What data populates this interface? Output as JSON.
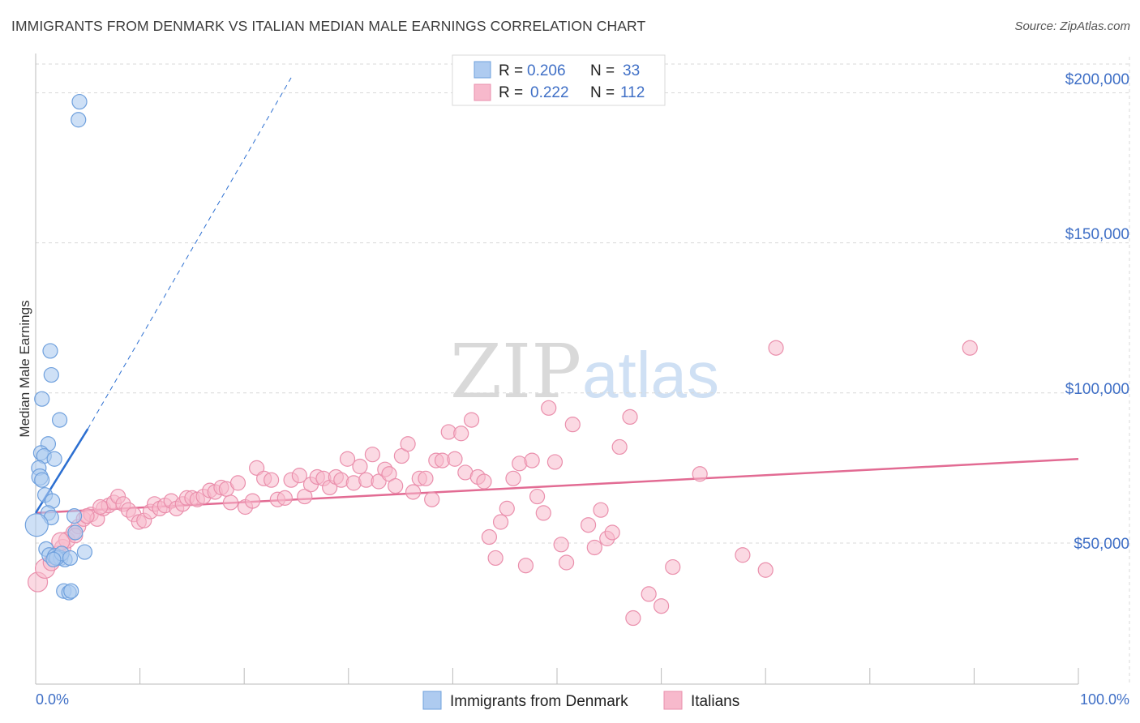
{
  "header": {
    "title": "IMMIGRANTS FROM DENMARK VS ITALIAN MEDIAN MALE EARNINGS CORRELATION CHART",
    "source": "Source: ZipAtlas.com"
  },
  "watermark": {
    "zip": "ZIP",
    "atlas": "atlas"
  },
  "colors": {
    "denmark_fill": "#aecbf0",
    "denmark_stroke": "#6fa0dd",
    "denmark_line": "#2c6fd1",
    "italians_fill": "#f7b9cc",
    "italians_stroke": "#ea8fac",
    "italians_line": "#e26b93",
    "grid": "#d8d8d8",
    "axis_text": "#3f6fc6"
  },
  "legend": {
    "rows": [
      {
        "r_label": "R = ",
        "r_value": "0.206",
        "n_label": "N = ",
        "n_value": "33"
      },
      {
        "r_label": "R = ",
        "r_value": "0.222",
        "n_label": "N = ",
        "n_value": "112"
      }
    ]
  },
  "chart_data": {
    "type": "scatter",
    "title": "IMMIGRANTS FROM DENMARK VS ITALIAN MEDIAN MALE EARNINGS CORRELATION CHART",
    "xlabel": "",
    "ylabel": "Median Male Earnings",
    "xlim": [
      0,
      100
    ],
    "ylim": [
      3000,
      212000
    ],
    "x_tick_labels": [
      "0.0%",
      "100.0%"
    ],
    "y_ticks": [
      {
        "value": 50000,
        "label": "$50,000"
      },
      {
        "value": 100000,
        "label": "$100,000"
      },
      {
        "value": 150000,
        "label": "$150,000"
      },
      {
        "value": 200000,
        "label": "$200,000"
      }
    ],
    "grid": true,
    "legend_position": "top-center",
    "series": [
      {
        "name": "Immigrants from Denmark",
        "r": 0.206,
        "n": 33,
        "trend": {
          "x0": 0.0,
          "y0": 60000,
          "x1": 5.0,
          "y1": 88000,
          "dash_to_x": 24.5,
          "dash_to_y": 205000
        },
        "points": [
          {
            "x": 4.2,
            "y": 197000,
            "r": 9
          },
          {
            "x": 4.1,
            "y": 191000,
            "r": 9
          },
          {
            "x": 1.4,
            "y": 114000,
            "r": 9
          },
          {
            "x": 1.5,
            "y": 106000,
            "r": 9
          },
          {
            "x": 0.6,
            "y": 98000,
            "r": 9
          },
          {
            "x": 2.3,
            "y": 91000,
            "r": 9
          },
          {
            "x": 1.2,
            "y": 83000,
            "r": 9
          },
          {
            "x": 0.5,
            "y": 80000,
            "r": 9
          },
          {
            "x": 0.8,
            "y": 79000,
            "r": 9
          },
          {
            "x": 1.8,
            "y": 78000,
            "r": 9
          },
          {
            "x": 0.3,
            "y": 75000,
            "r": 9
          },
          {
            "x": 0.4,
            "y": 72000,
            "r": 10
          },
          {
            "x": 0.6,
            "y": 71000,
            "r": 9
          },
          {
            "x": 0.9,
            "y": 66000,
            "r": 9
          },
          {
            "x": 1.6,
            "y": 64000,
            "r": 9
          },
          {
            "x": 1.2,
            "y": 60000,
            "r": 9
          },
          {
            "x": 3.7,
            "y": 59000,
            "r": 9
          },
          {
            "x": 1.5,
            "y": 58500,
            "r": 9
          },
          {
            "x": 0.1,
            "y": 56000,
            "r": 14
          },
          {
            "x": 3.8,
            "y": 53500,
            "r": 9
          },
          {
            "x": 1.0,
            "y": 48000,
            "r": 9
          },
          {
            "x": 4.7,
            "y": 47000,
            "r": 9
          },
          {
            "x": 1.3,
            "y": 46000,
            "r": 9
          },
          {
            "x": 1.9,
            "y": 45500,
            "r": 10
          },
          {
            "x": 2.4,
            "y": 45000,
            "r": 9
          },
          {
            "x": 2.8,
            "y": 44500,
            "r": 9
          },
          {
            "x": 2.0,
            "y": 45000,
            "r": 9
          },
          {
            "x": 2.5,
            "y": 46500,
            "r": 9
          },
          {
            "x": 1.7,
            "y": 44500,
            "r": 9
          },
          {
            "x": 3.3,
            "y": 45000,
            "r": 9
          },
          {
            "x": 2.7,
            "y": 34000,
            "r": 9
          },
          {
            "x": 3.2,
            "y": 33500,
            "r": 9
          },
          {
            "x": 3.4,
            "y": 34000,
            "r": 9
          }
        ]
      },
      {
        "name": "Italians",
        "r": 0.222,
        "n": 112,
        "trend": {
          "x0": 0.0,
          "y0": 60000,
          "x1": 100.0,
          "y1": 78000
        },
        "points": [
          {
            "x": 0.2,
            "y": 37000,
            "r": 12
          },
          {
            "x": 0.9,
            "y": 41500,
            "r": 12
          },
          {
            "x": 1.5,
            "y": 43500,
            "r": 10
          },
          {
            "x": 2.1,
            "y": 46000,
            "r": 11
          },
          {
            "x": 2.6,
            "y": 48500,
            "r": 10
          },
          {
            "x": 3.0,
            "y": 51000,
            "r": 10
          },
          {
            "x": 3.6,
            "y": 53500,
            "r": 9
          },
          {
            "x": 4.1,
            "y": 55500,
            "r": 9
          },
          {
            "x": 4.6,
            "y": 58000,
            "r": 9
          },
          {
            "x": 5.3,
            "y": 59500,
            "r": 9
          },
          {
            "x": 5.9,
            "y": 58000,
            "r": 9
          },
          {
            "x": 6.5,
            "y": 61500,
            "r": 9
          },
          {
            "x": 7.0,
            "y": 62500,
            "r": 9
          },
          {
            "x": 7.5,
            "y": 63500,
            "r": 9
          },
          {
            "x": 7.9,
            "y": 65500,
            "r": 9
          },
          {
            "x": 8.4,
            "y": 63000,
            "r": 9
          },
          {
            "x": 8.9,
            "y": 61000,
            "r": 9
          },
          {
            "x": 9.4,
            "y": 59500,
            "r": 9
          },
          {
            "x": 9.9,
            "y": 57000,
            "r": 9
          },
          {
            "x": 10.4,
            "y": 57500,
            "r": 9
          },
          {
            "x": 11.0,
            "y": 60500,
            "r": 9
          },
          {
            "x": 11.4,
            "y": 63000,
            "r": 9
          },
          {
            "x": 11.9,
            "y": 61500,
            "r": 9
          },
          {
            "x": 12.4,
            "y": 62500,
            "r": 9
          },
          {
            "x": 13.0,
            "y": 64000,
            "r": 9
          },
          {
            "x": 13.5,
            "y": 61500,
            "r": 9
          },
          {
            "x": 14.1,
            "y": 63000,
            "r": 9
          },
          {
            "x": 14.5,
            "y": 65000,
            "r": 9
          },
          {
            "x": 15.0,
            "y": 65000,
            "r": 9
          },
          {
            "x": 15.5,
            "y": 64500,
            "r": 9
          },
          {
            "x": 16.1,
            "y": 65500,
            "r": 9
          },
          {
            "x": 16.7,
            "y": 67500,
            "r": 9
          },
          {
            "x": 17.2,
            "y": 67000,
            "r": 9
          },
          {
            "x": 17.8,
            "y": 68500,
            "r": 9
          },
          {
            "x": 18.3,
            "y": 68000,
            "r": 9
          },
          {
            "x": 18.7,
            "y": 63500,
            "r": 9
          },
          {
            "x": 19.4,
            "y": 70000,
            "r": 9
          },
          {
            "x": 20.1,
            "y": 62000,
            "r": 9
          },
          {
            "x": 20.8,
            "y": 64000,
            "r": 9
          },
          {
            "x": 21.2,
            "y": 75000,
            "r": 9
          },
          {
            "x": 21.9,
            "y": 71500,
            "r": 9
          },
          {
            "x": 22.6,
            "y": 71000,
            "r": 9
          },
          {
            "x": 23.2,
            "y": 64500,
            "r": 9
          },
          {
            "x": 23.9,
            "y": 65000,
            "r": 9
          },
          {
            "x": 24.5,
            "y": 71000,
            "r": 9
          },
          {
            "x": 25.3,
            "y": 72500,
            "r": 9
          },
          {
            "x": 25.8,
            "y": 65500,
            "r": 9
          },
          {
            "x": 26.4,
            "y": 69500,
            "r": 9
          },
          {
            "x": 27.0,
            "y": 72000,
            "r": 9
          },
          {
            "x": 27.6,
            "y": 71500,
            "r": 9
          },
          {
            "x": 28.2,
            "y": 68500,
            "r": 9
          },
          {
            "x": 28.8,
            "y": 72000,
            "r": 9
          },
          {
            "x": 29.3,
            "y": 71000,
            "r": 9
          },
          {
            "x": 29.9,
            "y": 78000,
            "r": 9
          },
          {
            "x": 30.5,
            "y": 70000,
            "r": 9
          },
          {
            "x": 31.1,
            "y": 75500,
            "r": 9
          },
          {
            "x": 31.7,
            "y": 71000,
            "r": 9
          },
          {
            "x": 32.3,
            "y": 79500,
            "r": 9
          },
          {
            "x": 32.9,
            "y": 70500,
            "r": 9
          },
          {
            "x": 33.5,
            "y": 74500,
            "r": 9
          },
          {
            "x": 33.9,
            "y": 73000,
            "r": 9
          },
          {
            "x": 34.5,
            "y": 69000,
            "r": 9
          },
          {
            "x": 35.1,
            "y": 79000,
            "r": 9
          },
          {
            "x": 35.7,
            "y": 83000,
            "r": 9
          },
          {
            "x": 36.2,
            "y": 67000,
            "r": 9
          },
          {
            "x": 36.8,
            "y": 71500,
            "r": 9
          },
          {
            "x": 37.4,
            "y": 71500,
            "r": 9
          },
          {
            "x": 38.0,
            "y": 64500,
            "r": 9
          },
          {
            "x": 38.4,
            "y": 77500,
            "r": 9
          },
          {
            "x": 39.0,
            "y": 77500,
            "r": 9
          },
          {
            "x": 39.6,
            "y": 87000,
            "r": 9
          },
          {
            "x": 40.2,
            "y": 78000,
            "r": 9
          },
          {
            "x": 40.8,
            "y": 86500,
            "r": 9
          },
          {
            "x": 41.2,
            "y": 73500,
            "r": 9
          },
          {
            "x": 41.8,
            "y": 91000,
            "r": 9
          },
          {
            "x": 42.4,
            "y": 72000,
            "r": 9
          },
          {
            "x": 43.0,
            "y": 70500,
            "r": 9
          },
          {
            "x": 43.5,
            "y": 52000,
            "r": 9
          },
          {
            "x": 44.1,
            "y": 45000,
            "r": 9
          },
          {
            "x": 44.6,
            "y": 57000,
            "r": 9
          },
          {
            "x": 45.2,
            "y": 61500,
            "r": 9
          },
          {
            "x": 45.8,
            "y": 71500,
            "r": 9
          },
          {
            "x": 46.4,
            "y": 76500,
            "r": 9
          },
          {
            "x": 47.0,
            "y": 42500,
            "r": 9
          },
          {
            "x": 47.6,
            "y": 77500,
            "r": 9
          },
          {
            "x": 48.1,
            "y": 65500,
            "r": 9
          },
          {
            "x": 48.7,
            "y": 60000,
            "r": 9
          },
          {
            "x": 49.2,
            "y": 95000,
            "r": 9
          },
          {
            "x": 49.8,
            "y": 77000,
            "r": 9
          },
          {
            "x": 50.4,
            "y": 49500,
            "r": 9
          },
          {
            "x": 50.9,
            "y": 43500,
            "r": 9
          },
          {
            "x": 51.5,
            "y": 89500,
            "r": 9
          },
          {
            "x": 53.0,
            "y": 56000,
            "r": 9
          },
          {
            "x": 53.6,
            "y": 48500,
            "r": 9
          },
          {
            "x": 54.2,
            "y": 61000,
            "r": 9
          },
          {
            "x": 54.8,
            "y": 51500,
            "r": 9
          },
          {
            "x": 55.3,
            "y": 53500,
            "r": 9
          },
          {
            "x": 56.0,
            "y": 82000,
            "r": 9
          },
          {
            "x": 57.0,
            "y": 92000,
            "r": 9
          },
          {
            "x": 57.3,
            "y": 25000,
            "r": 9
          },
          {
            "x": 58.8,
            "y": 33000,
            "r": 9
          },
          {
            "x": 60.0,
            "y": 29000,
            "r": 9
          },
          {
            "x": 61.1,
            "y": 42000,
            "r": 9
          },
          {
            "x": 63.7,
            "y": 73000,
            "r": 9
          },
          {
            "x": 67.8,
            "y": 46000,
            "r": 9
          },
          {
            "x": 70.0,
            "y": 41000,
            "r": 9
          },
          {
            "x": 71.0,
            "y": 115000,
            "r": 9
          },
          {
            "x": 89.6,
            "y": 115000,
            "r": 9
          },
          {
            "x": 2.4,
            "y": 50500,
            "r": 11
          },
          {
            "x": 3.8,
            "y": 52500,
            "r": 9
          },
          {
            "x": 4.9,
            "y": 59000,
            "r": 9
          },
          {
            "x": 6.2,
            "y": 62000,
            "r": 9
          }
        ]
      }
    ]
  },
  "bottom_legend": {
    "items": [
      "Immigrants from Denmark",
      "Italians"
    ]
  }
}
